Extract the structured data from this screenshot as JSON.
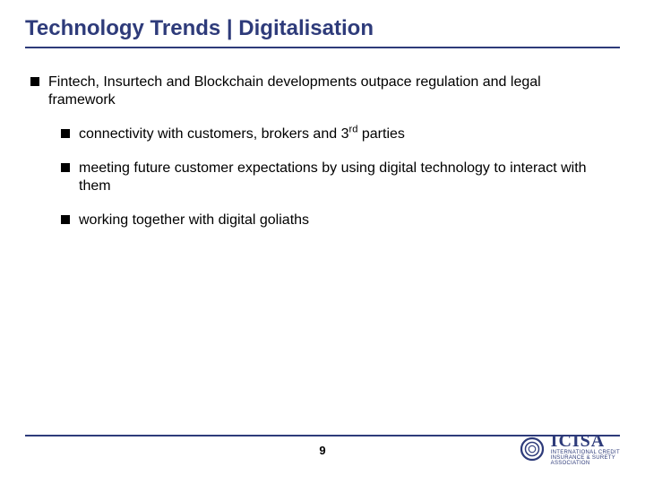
{
  "title": "Technology Trends | Digitalisation",
  "colors": {
    "accent": "#2e3b7a",
    "text": "#000000",
    "background": "#ffffff"
  },
  "typography": {
    "title_fontsize": 24,
    "body_fontsize": 16,
    "footer_fontsize": 13
  },
  "bullets": {
    "l1": {
      "text": "Fintech, Insurtech and Blockchain developments outpace regulation and legal framework"
    },
    "l2": [
      {
        "text_html": "connectivity with customers, brokers and 3<span class=\"sup\">rd</span> parties"
      },
      {
        "text_html": "meeting future customer expectations by using digital technology to interact with them"
      },
      {
        "text_html": "working together with digital goliaths"
      }
    ]
  },
  "footer": {
    "page_number": "9"
  },
  "logo": {
    "name": "ICISA",
    "sub1": "INTERNATIONAL CREDIT",
    "sub2": "INSURANCE & SURETY",
    "sub3": "ASSOCIATION"
  }
}
